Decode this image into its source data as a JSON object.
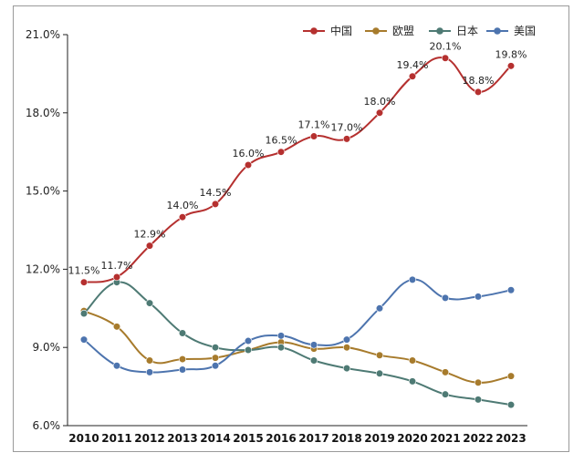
{
  "chart_data": {
    "type": "line",
    "title": "",
    "xlabel": "",
    "ylabel": "",
    "categories": [
      "2010",
      "2011",
      "2012",
      "2013",
      "2014",
      "2015",
      "2016",
      "2017",
      "2018",
      "2019",
      "2020",
      "2021",
      "2022",
      "2023"
    ],
    "ylim": [
      6.0,
      21.0
    ],
    "yticks": [
      6.0,
      9.0,
      12.0,
      15.0,
      18.0,
      21.0
    ],
    "ytick_labels": [
      "6.0%",
      "9.0%",
      "12.0%",
      "15.0%",
      "18.0%",
      "21.0%"
    ],
    "grid": false,
    "legend_position": "top-right",
    "series": [
      {
        "name": "中国",
        "color": "#b5302f",
        "values": [
          11.5,
          11.7,
          12.9,
          14.0,
          14.5,
          16.0,
          16.5,
          17.1,
          17.0,
          18.0,
          19.4,
          20.1,
          18.8,
          19.8
        ],
        "labels": [
          "11.5%",
          "11.7%",
          "12.9%",
          "14.0%",
          "14.5%",
          "16.0%",
          "16.5%",
          "17.1%",
          "17.0%",
          "18.0%",
          "19.4%",
          "20.1%",
          "18.8%",
          "19.8%"
        ]
      },
      {
        "name": "欧盟",
        "color": "#a77b2c",
        "values": [
          10.4,
          9.8,
          8.5,
          8.55,
          8.6,
          8.9,
          9.2,
          8.95,
          9.0,
          8.7,
          8.5,
          8.05,
          7.65,
          7.9
        ]
      },
      {
        "name": "日本",
        "color": "#4e7a74",
        "values": [
          10.3,
          11.5,
          10.7,
          9.55,
          9.0,
          8.9,
          9.0,
          8.5,
          8.2,
          8.0,
          7.7,
          7.2,
          7.0,
          6.8
        ]
      },
      {
        "name": "美国",
        "color": "#4d74ae",
        "values": [
          9.3,
          8.3,
          8.05,
          8.15,
          8.3,
          9.25,
          9.45,
          9.1,
          9.3,
          10.5,
          11.6,
          10.9,
          10.95,
          11.2
        ]
      }
    ]
  }
}
